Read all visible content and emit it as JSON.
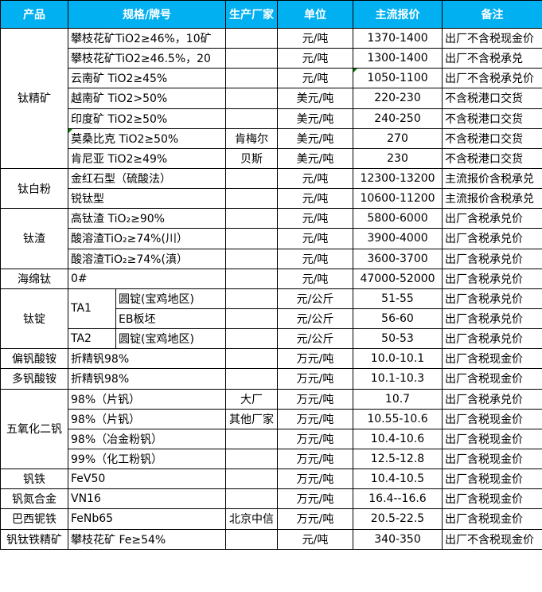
{
  "header": {
    "bg": "#00B0F0",
    "text_color": "#FFFFFF",
    "columns": [
      "产品",
      "规格/牌号",
      "生产厂家",
      "单位",
      "主流报价",
      "备注"
    ]
  },
  "comment_marker_color": "#008000",
  "border_color": "#000000",
  "groups": [
    {
      "product": "钛精矿",
      "rows": [
        {
          "spec": "攀枝花矿TiO2≥46%，10矿",
          "maker": "",
          "unit": "元/吨",
          "price": "1370-1400",
          "note": "出厂不含税现金价"
        },
        {
          "spec": "攀枝花矿TiO2≥46.5%，20",
          "maker": "",
          "unit": "元/吨",
          "price": "1300-1400",
          "note": "出厂不含税承兑"
        },
        {
          "spec": "云南矿 TiO2≥45%",
          "maker": "",
          "unit": "元/吨",
          "price": "1050-1100",
          "note": "出厂不含税承兑价",
          "price_marker": true
        },
        {
          "spec": "越南矿 TiO2>50%",
          "maker": "",
          "unit": "美元/吨",
          "price": "220-230",
          "note": "不含税港口交货"
        },
        {
          "spec": "印度矿 TiO2≥50%",
          "maker": "",
          "unit": "美元/吨",
          "price": "240-250",
          "note": "不含税港口交货"
        },
        {
          "spec": "莫桑比克 TiO2≥50%",
          "maker": "肯梅尔",
          "unit": "美元/吨",
          "price": "270",
          "note": "不含税港口交货",
          "spec_marker": true
        },
        {
          "spec": "肯尼亚 TiO2≥49%",
          "maker": "贝斯",
          "unit": "美元/吨",
          "price": "230",
          "note": "不含税港口交货"
        }
      ]
    },
    {
      "product": "钛白粉",
      "rows": [
        {
          "spec": "金红石型（硫酸法）",
          "maker": "",
          "unit": "元/吨",
          "price": "12300-13200",
          "note": "主流报价含税承兑"
        },
        {
          "spec": "锐钛型",
          "maker": "",
          "unit": "元/吨",
          "price": "10600-11200",
          "note": "主流报价含税承兑"
        }
      ]
    },
    {
      "product": "钛渣",
      "rows": [
        {
          "spec": "高钛渣 TiO₂≥90%",
          "maker": "",
          "unit": "元/吨",
          "price": "5800-6000",
          "note": "出厂含税承兑价"
        },
        {
          "spec": "酸溶渣TiO₂≥74%(川）",
          "maker": "",
          "unit": "元/吨",
          "price": "3900-4000",
          "note": "出厂含税承兑价"
        },
        {
          "spec": "酸溶渣TiO₂≥74%(滇）",
          "maker": "",
          "unit": "元/吨",
          "price": "3600-3700",
          "note": "出厂含税承兑价"
        }
      ]
    },
    {
      "product": "海绵钛",
      "rows": [
        {
          "spec": "0#",
          "maker": "",
          "unit": "元/吨",
          "price": "47000-52000",
          "note": "出厂含税承兑价"
        }
      ]
    },
    {
      "product": "钛锭",
      "rows": [
        {
          "spec_a": "TA1",
          "spec_a_rowspan": 2,
          "spec_b": "圆锭(宝鸡地区)",
          "maker": "",
          "unit": "元/公斤",
          "price": "51-55",
          "note": "出厂含税承兑价"
        },
        {
          "spec_b": "EB板坯",
          "maker": "",
          "unit": "元/公斤",
          "price": "56-60",
          "note": "出厂含税承兑价"
        },
        {
          "spec_a": "TA2",
          "spec_a_rowspan": 1,
          "spec_b": "圆锭(宝鸡地区)",
          "maker": "",
          "unit": "元/公斤",
          "price": "50-53",
          "note": "出厂含税承兑价"
        }
      ]
    },
    {
      "product": "偏钒酸铵",
      "rows": [
        {
          "spec": "折精钒98%",
          "maker": "",
          "unit": "万元/吨",
          "price": "10.0-10.1",
          "note": "出厂含税现金价"
        }
      ]
    },
    {
      "product": "多钒酸铵",
      "rows": [
        {
          "spec": "折精钒98%",
          "maker": "",
          "unit": "万元/吨",
          "price": "10.1-10.3",
          "note": "出厂含税现金价"
        }
      ]
    },
    {
      "product": "五氧化二钒",
      "rows": [
        {
          "spec": "98%（片钒）",
          "maker": "大厂",
          "unit": "万元/吨",
          "price": "10.7",
          "note": "出厂含税承兑价"
        },
        {
          "spec": "98%（片钒）",
          "maker": "其他厂家",
          "unit": "万元/吨",
          "price": "10.55-10.6",
          "note": "出厂含税现金价"
        },
        {
          "spec": "98%（冶金粉钒）",
          "maker": "",
          "unit": "万元/吨",
          "price": "10.4-10.6",
          "note": "出厂含税现金价"
        },
        {
          "spec": "99%（化工粉钒）",
          "maker": "",
          "unit": "万元/吨",
          "price": "12.5-12.8",
          "note": "出厂含税现金价"
        }
      ]
    },
    {
      "product": "钒铁",
      "rows": [
        {
          "spec": "FeV50",
          "maker": "",
          "unit": "万元/吨",
          "price": "10.4-10.5",
          "note": "出厂含税现金价"
        }
      ]
    },
    {
      "product": "钒氮合金",
      "rows": [
        {
          "spec": "VN16",
          "maker": "",
          "unit": "万元/吨",
          "price": "16.4--16.6",
          "note": "出厂含税现金价"
        }
      ]
    },
    {
      "product": "巴西铌铁",
      "rows": [
        {
          "spec": "FeNb65",
          "maker": "北京中信",
          "unit": "万元/吨",
          "price": "20.5-22.5",
          "note": "出厂含税现金价"
        }
      ]
    },
    {
      "product": "钒钛铁精矿",
      "rows": [
        {
          "spec": "攀枝花矿 Fe≥54%",
          "maker": "",
          "unit": "元/吨",
          "price": "340-350",
          "note": "出厂不含税现金价"
        }
      ]
    }
  ]
}
